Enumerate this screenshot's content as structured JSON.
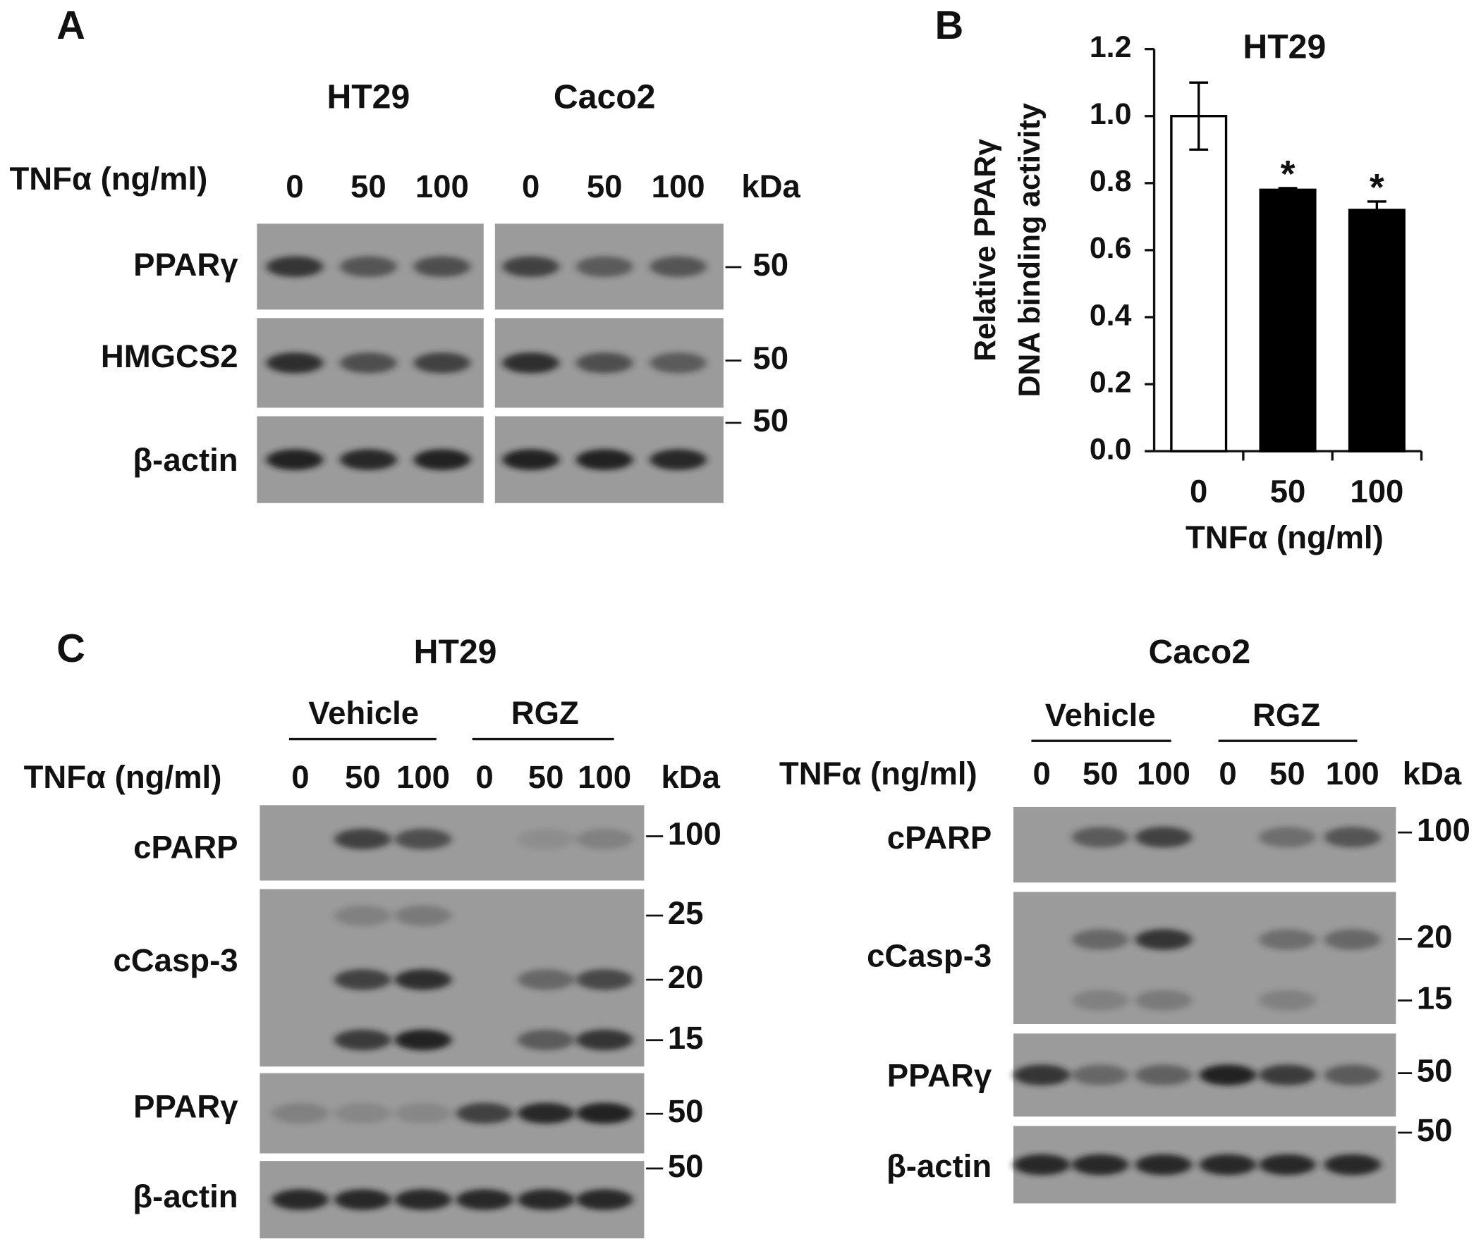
{
  "panel_a": {
    "label": "A",
    "treatment": "TNFα (ng/ml)",
    "unit": "kDa",
    "groups": [
      {
        "name": "HT29",
        "doses": [
          "0",
          "50",
          "100"
        ]
      },
      {
        "name": "Caco2",
        "doses": [
          "0",
          "50",
          "100"
        ]
      }
    ],
    "rows": [
      {
        "name": "PPARγ",
        "markers": [
          "50"
        ]
      },
      {
        "name": "HMGCS2",
        "markers": [
          "50"
        ]
      },
      {
        "name": "β-actin",
        "markers": [
          "50"
        ]
      }
    ]
  },
  "chart_data": {
    "type": "bar",
    "panel_label": "B",
    "title": "HT29",
    "y_label": [
      "Relative PPARγ",
      "DNA binding activity"
    ],
    "x_label": "TNFα (ng/ml)",
    "categories": [
      "0",
      "50",
      "100"
    ],
    "values": [
      1.0,
      0.78,
      0.72
    ],
    "errors": [
      0.1,
      0.005,
      0.025
    ],
    "colors": [
      "#ffffff",
      "#000000",
      "#000000"
    ],
    "significance": [
      null,
      "*",
      "*"
    ],
    "ylim": [
      0,
      1.2
    ],
    "yticks": [
      {
        "value": 0,
        "label": "0.0"
      },
      {
        "value": 0.2,
        "label": "0.2"
      },
      {
        "value": 0.4,
        "label": "0.4"
      },
      {
        "value": 0.6,
        "label": "0.6"
      },
      {
        "value": 0.8,
        "label": "0.8"
      },
      {
        "value": 1.0,
        "label": "1.0"
      },
      {
        "value": 1.2,
        "label": "1.2"
      }
    ]
  },
  "panel_c": {
    "label": "C",
    "treatment": "TNFα (ng/ml)",
    "unit": "kDa",
    "blots": [
      {
        "cell_line": "HT29",
        "conditions": [
          "Vehicle",
          "RGZ"
        ],
        "doses": [
          "0",
          "50",
          "100"
        ],
        "rows": [
          {
            "name": "cPARP",
            "markers": [
              "100"
            ]
          },
          {
            "name": "cCasp-3",
            "markers": [
              "25",
              "20",
              "15"
            ]
          },
          {
            "name": "PPARγ",
            "markers": [
              "50"
            ]
          },
          {
            "name": "β-actin",
            "markers": [
              "50"
            ]
          }
        ]
      },
      {
        "cell_line": "Caco2",
        "conditions": [
          "Vehicle",
          "RGZ"
        ],
        "doses": [
          "0",
          "50",
          "100"
        ],
        "rows": [
          {
            "name": "cPARP",
            "markers": [
              "100"
            ]
          },
          {
            "name": "cCasp-3",
            "markers": [
              "20",
              "15"
            ]
          },
          {
            "name": "PPARγ",
            "markers": [
              "50"
            ]
          },
          {
            "name": "β-actin",
            "markers": [
              "50"
            ]
          }
        ]
      }
    ]
  }
}
